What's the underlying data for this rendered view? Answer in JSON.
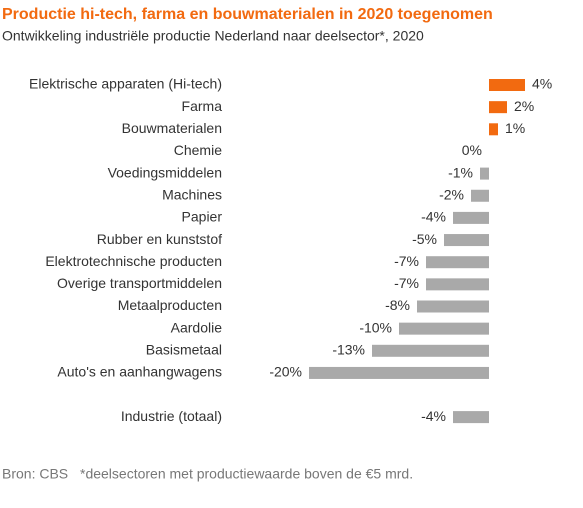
{
  "chart_data": {
    "type": "hbar",
    "title": "Productie hi-tech, farma en bouwmaterialen in 2020 toegenomen",
    "subtitle": "Ontwikkeling industriële productie Nederland naar deelsector*, 2020",
    "categories": [
      "Elektrische apparaten (Hi-tech)",
      "Farma",
      "Bouwmaterialen",
      "Chemie",
      "Voedingsmiddelen",
      "Machines",
      "Papier",
      "Rubber en kunststof",
      "Elektrotechnische producten",
      "Overige transportmiddelen",
      "Metaalproducten",
      "Aardolie",
      "Basismetaal",
      "Auto's en aanhangwagens",
      "Industrie (totaal)"
    ],
    "values": [
      4,
      2,
      1,
      0,
      -1,
      -2,
      -4,
      -5,
      -7,
      -7,
      -8,
      -10,
      -13,
      -20,
      -4
    ],
    "value_labels": [
      "4%",
      "2%",
      "1%",
      "0%",
      "-1%",
      "-2%",
      "-4%",
      "-5%",
      "-7%",
      "-7%",
      "-8%",
      "-10%",
      "-13%",
      "-20%",
      "-4%"
    ],
    "colors": {
      "positive": "#f26a10",
      "negative": "#a9a9a9"
    },
    "xlim": [
      -20,
      5
    ],
    "source": "Bron: CBS",
    "note": "*deelsectoren met productiewaarde boven de €5 mrd."
  }
}
